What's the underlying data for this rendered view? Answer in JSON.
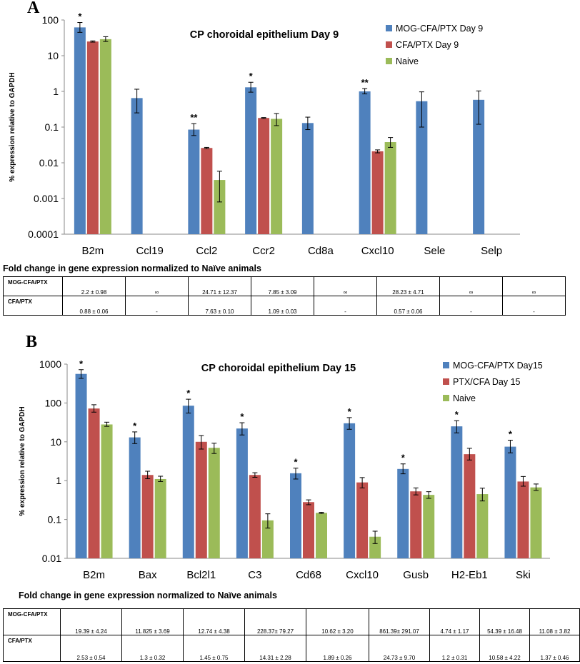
{
  "panels": [
    {
      "letter": "A",
      "chart_data": {
        "type": "bar",
        "title": "CP choroidal epithelium Day 9",
        "ylabel": "% expression relative to GAPDH",
        "xlabel": "",
        "yscale": "log",
        "ylim": [
          0.0001,
          100
        ],
        "yticks": [
          0.0001,
          0.001,
          0.01,
          0.1,
          1,
          10,
          100
        ],
        "ytick_labels": [
          "0.0001",
          "0.001",
          "0.01",
          "0.1",
          "1",
          "10",
          "100"
        ],
        "categories": [
          "B2m",
          "Ccl19",
          "Ccl2",
          "Ccr2",
          "Cd8a",
          "Cxcl10",
          "Sele",
          "Selp"
        ],
        "series": [
          {
            "name": "MOG-CFA/PTX Day 9",
            "color": "#4f81bd",
            "values": [
              62,
              0.65,
              0.085,
              1.3,
              0.13,
              1.0,
              0.53,
              0.58
            ],
            "err_low": [
              45,
              0.25,
              0.058,
              0.95,
              0.085,
              0.85,
              0.1,
              0.12
            ],
            "err_high": [
              85,
              1.15,
              0.125,
              1.8,
              0.19,
              1.2,
              0.97,
              1.03
            ]
          },
          {
            "name": "CFA/PTX Day 9",
            "color": "#c0504d",
            "values": [
              25,
              null,
              0.026,
              0.18,
              null,
              0.021,
              null,
              null
            ],
            "err_low": [
              24,
              null,
              0.025,
              0.175,
              null,
              0.019,
              null,
              null
            ],
            "err_high": [
              26,
              null,
              0.027,
              0.185,
              null,
              0.023,
              null,
              null
            ]
          },
          {
            "name": "Naive",
            "color": "#9bbb59",
            "values": [
              29,
              null,
              0.0033,
              0.17,
              null,
              0.038,
              null,
              null
            ],
            "err_low": [
              25,
              null,
              0.0008,
              0.11,
              null,
              0.027,
              null,
              null
            ],
            "err_high": [
              34,
              null,
              0.0058,
              0.24,
              null,
              0.051,
              null,
              null
            ]
          }
        ],
        "annotations": [
          {
            "category": "B2m",
            "text": "*"
          },
          {
            "category": "Ccl2",
            "text": "**"
          },
          {
            "category": "Ccr2",
            "text": "*"
          },
          {
            "category": "Cxcl10",
            "text": "**"
          }
        ],
        "legend": "top-right",
        "grid": false
      },
      "fold_change": {
        "title": "Fold change in gene expression normalized to Naïve animals",
        "rows": [
          {
            "label": "MOG-CFA/PTX",
            "values": [
              "2.2 ± 0.98",
              "∞",
              "24.71 ± 12.37",
              "7.85 ± 3.09",
              "∞",
              "28.23 ± 4.71",
              "∞",
              "∞"
            ]
          },
          {
            "label": "CFA/PTX",
            "values": [
              "0.88 ± 0.06",
              "-",
              "7.63 ± 0.10",
              "1.09 ± 0.03",
              "-",
              "0.57 ± 0.06",
              "-",
              "-"
            ]
          }
        ]
      }
    },
    {
      "letter": "B",
      "chart_data": {
        "type": "bar",
        "title": "CP choroidal epithelium Day 15",
        "ylabel": "% expression relative to GAPDH",
        "xlabel": "",
        "yscale": "log",
        "ylim": [
          0.01,
          1000
        ],
        "yticks": [
          0.01,
          0.1,
          1,
          10,
          100,
          1000
        ],
        "ytick_labels": [
          "0.01",
          "0.1",
          "1",
          "10",
          "100",
          "1000"
        ],
        "categories": [
          "B2m",
          "Bax",
          "Bcl2l1",
          "C3",
          "Cd68",
          "Cxcl10",
          "Gusb",
          "H2-Eb1",
          "Ski"
        ],
        "series": [
          {
            "name": "MOG-CFA/PTX Day15",
            "color": "#4f81bd",
            "values": [
              560,
              13,
              85,
              22,
              1.55,
              30,
              2.0,
              25,
              7.5
            ],
            "err_low": [
              430,
              9,
              55,
              15,
              1.1,
              21,
              1.5,
              17,
              5.2
            ],
            "err_high": [
              720,
              18,
              125,
              31,
              2.1,
              42,
              2.7,
              35,
              11
            ]
          },
          {
            "name": "PTX/CFA Day 15",
            "color": "#c0504d",
            "values": [
              72,
              1.4,
              10,
              1.4,
              0.28,
              0.9,
              0.53,
              4.8,
              0.95
            ],
            "err_low": [
              58,
              1.12,
              6.5,
              1.22,
              0.24,
              0.65,
              0.43,
              3.4,
              0.72
            ],
            "err_high": [
              90,
              1.75,
              14.5,
              1.6,
              0.32,
              1.2,
              0.65,
              6.8,
              1.28
            ]
          },
          {
            "name": "Naive",
            "color": "#9bbb59",
            "values": [
              28,
              1.1,
              7.0,
              0.095,
              0.148,
              0.036,
              0.43,
              0.45,
              0.67
            ],
            "err_low": [
              25,
              0.95,
              5.0,
              0.06,
              0.143,
              0.024,
              0.35,
              0.3,
              0.56
            ],
            "err_high": [
              32,
              1.3,
              9.2,
              0.14,
              0.153,
              0.05,
              0.52,
              0.64,
              0.82
            ]
          }
        ],
        "annotations": [
          {
            "category": "B2m",
            "text": "*"
          },
          {
            "category": "Bax",
            "text": "*"
          },
          {
            "category": "Bcl2l1",
            "text": "*"
          },
          {
            "category": "C3",
            "text": "*"
          },
          {
            "category": "Cd68",
            "text": "*"
          },
          {
            "category": "Cxcl10",
            "text": "*"
          },
          {
            "category": "Gusb",
            "text": "*"
          },
          {
            "category": "H2-Eb1",
            "text": "*"
          },
          {
            "category": "Ski",
            "text": "*"
          }
        ],
        "legend": "top-right",
        "grid": false
      },
      "fold_change": {
        "title": "Fold change in gene expression normalized to Naïve animals",
        "rows": [
          {
            "label": "MOG-CFA/PTX",
            "values": [
              "19.39 ± 4.24",
              "11.825 ± 3.69",
              "12.74 ± 4.38",
              "228.37± 79.27",
              "10.62 ± 3.20",
              "861.39± 291.07",
              "4.74 ± 1.17",
              "54.39 ± 16.48",
              "11.08 ± 3.82"
            ]
          },
          {
            "label": "CFA/PTX",
            "values": [
              "2.53 ± 0.54",
              "1.3 ± 0.32",
              "1.45 ± 0.75",
              "14.31 ± 2.28",
              "1.89 ± 0.26",
              "24.73 ± 9.70",
              "1.2 ± 0.31",
              "10.58 ± 4.22",
              "1.37 ± 0.46"
            ]
          }
        ]
      }
    }
  ]
}
